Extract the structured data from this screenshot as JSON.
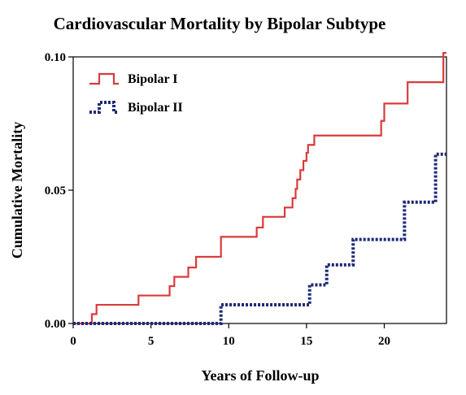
{
  "chart_data": {
    "type": "line",
    "step": true,
    "title": "Cardiovascular Mortality by Bipolar Subtype",
    "xlabel": "Years of Follow-up",
    "ylabel": "Cumulative Mortality",
    "xlim": [
      0,
      24
    ],
    "ylim": [
      0,
      0.1
    ],
    "xticks": [
      0,
      5,
      10,
      15,
      20
    ],
    "xtick_labels": [
      "0",
      "5",
      "10",
      "15",
      "20"
    ],
    "yticks": [
      0,
      0.05,
      0.1
    ],
    "ytick_labels": [
      "0.00",
      "0.05",
      "0.10"
    ],
    "grid": false,
    "legend_position": "top-left",
    "series": [
      {
        "name": "Bipolar I",
        "color": "#d93b3b",
        "style": "solid",
        "points": [
          [
            0,
            0
          ],
          [
            1.2,
            0
          ],
          [
            1.2,
            0.0035
          ],
          [
            1.5,
            0.0035
          ],
          [
            1.5,
            0.007
          ],
          [
            4.2,
            0.007
          ],
          [
            4.2,
            0.0105
          ],
          [
            6.2,
            0.0105
          ],
          [
            6.2,
            0.014
          ],
          [
            6.5,
            0.014
          ],
          [
            6.5,
            0.0175
          ],
          [
            7.4,
            0.0175
          ],
          [
            7.4,
            0.021
          ],
          [
            7.9,
            0.021
          ],
          [
            7.9,
            0.025
          ],
          [
            9.5,
            0.025
          ],
          [
            9.5,
            0.0325
          ],
          [
            11.8,
            0.0325
          ],
          [
            11.8,
            0.036
          ],
          [
            12.2,
            0.036
          ],
          [
            12.2,
            0.04
          ],
          [
            13.6,
            0.04
          ],
          [
            13.6,
            0.0435
          ],
          [
            14.1,
            0.0435
          ],
          [
            14.1,
            0.047
          ],
          [
            14.3,
            0.047
          ],
          [
            14.3,
            0.0505
          ],
          [
            14.4,
            0.0505
          ],
          [
            14.4,
            0.054
          ],
          [
            14.6,
            0.054
          ],
          [
            14.6,
            0.0575
          ],
          [
            14.8,
            0.0575
          ],
          [
            14.8,
            0.061
          ],
          [
            15.0,
            0.061
          ],
          [
            15.0,
            0.064
          ],
          [
            15.1,
            0.064
          ],
          [
            15.1,
            0.067
          ],
          [
            15.5,
            0.067
          ],
          [
            15.5,
            0.0705
          ],
          [
            19.8,
            0.0705
          ],
          [
            19.8,
            0.076
          ],
          [
            20.0,
            0.076
          ],
          [
            20.0,
            0.0825
          ],
          [
            21.5,
            0.0825
          ],
          [
            21.5,
            0.0905
          ],
          [
            23.8,
            0.0905
          ],
          [
            23.8,
            0.1015
          ],
          [
            24,
            0.1015
          ]
        ]
      },
      {
        "name": "Bipolar II",
        "color": "#1e2a78",
        "style": "dotted",
        "points": [
          [
            0,
            0
          ],
          [
            9.5,
            0
          ],
          [
            9.5,
            0.007
          ],
          [
            15.2,
            0.007
          ],
          [
            15.2,
            0.0145
          ],
          [
            16.3,
            0.0145
          ],
          [
            16.3,
            0.022
          ],
          [
            18.0,
            0.022
          ],
          [
            18.0,
            0.0315
          ],
          [
            21.3,
            0.0315
          ],
          [
            21.3,
            0.0455
          ],
          [
            23.3,
            0.0455
          ],
          [
            23.3,
            0.0635
          ],
          [
            24,
            0.0635
          ]
        ]
      }
    ]
  }
}
